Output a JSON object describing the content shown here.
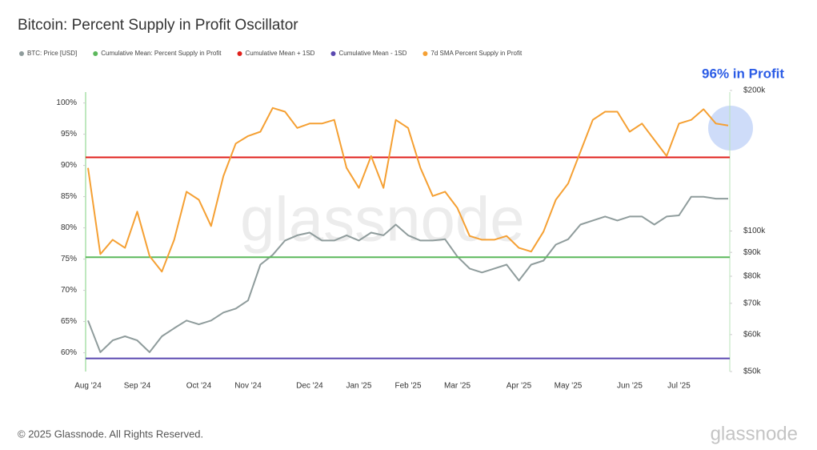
{
  "chart_data": {
    "type": "line",
    "title": "Bitcoin: Percent Supply in Profit Oscillator",
    "annotation": "96% in Profit",
    "copyright": "© 2025 Glassnode. All Rights Reserved.",
    "watermark": "glassnode",
    "categories": [
      "Aug '24",
      null,
      null,
      null,
      "Sep '24",
      null,
      null,
      null,
      null,
      "Oct '24",
      null,
      null,
      null,
      "Nov '24",
      null,
      null,
      null,
      null,
      "Dec '24",
      null,
      null,
      null,
      "Jan '25",
      null,
      null,
      null,
      "Feb '25",
      null,
      null,
      null,
      "Mar '25",
      null,
      null,
      null,
      null,
      "Apr '25",
      null,
      null,
      null,
      "May '25",
      null,
      null,
      null,
      null,
      "Jun '25",
      null,
      null,
      null,
      "Jul '25",
      null,
      null,
      null,
      null
    ],
    "series": [
      {
        "name": "BTC: Price [USD]",
        "color": "#8f9c9c",
        "axis": "y2",
        "values": [
          64300,
          55000,
          58300,
          59500,
          58300,
          55000,
          59500,
          61900,
          64300,
          63100,
          64300,
          66900,
          68200,
          71000,
          84700,
          88900,
          95400,
          97900,
          99200,
          95400,
          95400,
          97900,
          95400,
          99200,
          97900,
          103200,
          97900,
          95400,
          95400,
          96000,
          88200,
          83100,
          81500,
          83100,
          84700,
          78300,
          84700,
          86400,
          93500,
          96000,
          103200,
          105300,
          107400,
          105300,
          107400,
          107400,
          103200,
          107400,
          108000,
          118400,
          118400,
          117300,
          117300
        ]
      },
      {
        "name": "Cumulative Mean: Percent Supply in Profit",
        "color": "#5cb85c",
        "value": 75.3
      },
      {
        "name": "Cumulative Mean + 1SD",
        "color": "#e0201b",
        "value": 91.3
      },
      {
        "name": "Cumulative Mean - 1SD",
        "color": "#5a48b0",
        "value": 59.1
      },
      {
        "name": "7d SMA Percent Supply in Profit",
        "color": "#f5a033",
        "values": [
          89.6,
          75.8,
          78.1,
          76.8,
          82.6,
          75.5,
          73,
          78.1,
          85.8,
          84.5,
          80.3,
          88.3,
          93.5,
          94.7,
          95.4,
          99.2,
          98.6,
          96,
          96.7,
          96.7,
          97.3,
          89.6,
          86.4,
          91.5,
          86.4,
          97.3,
          96,
          89.6,
          85.1,
          85.8,
          83.2,
          78.7,
          78.1,
          78.1,
          78.7,
          76.8,
          76.2,
          79.4,
          84.5,
          87.1,
          92.2,
          97.3,
          98.6,
          98.6,
          95.4,
          96.7,
          94.1,
          91.5,
          96.7,
          97.3,
          99,
          96.7,
          96.4
        ]
      }
    ],
    "ylim": [
      57,
      102
    ],
    "yticks": [
      {
        "value": 60,
        "label": "60%"
      },
      {
        "value": 65,
        "label": "65%"
      },
      {
        "value": 70,
        "label": "70%"
      },
      {
        "value": 75,
        "label": "75%"
      },
      {
        "value": 80,
        "label": "80%"
      },
      {
        "value": 85,
        "label": "85%"
      },
      {
        "value": 90,
        "label": "90%"
      },
      {
        "value": 95,
        "label": "95%"
      },
      {
        "value": 100,
        "label": "100%"
      }
    ],
    "y2lim": [
      50000,
      200000
    ],
    "y2scale": "log",
    "y2ticks": [
      {
        "value": 50000,
        "label": "$50k"
      },
      {
        "value": 60000,
        "label": "$60k"
      },
      {
        "value": 70000,
        "label": "$70k"
      },
      {
        "value": 80000,
        "label": "$80k"
      },
      {
        "value": 90000,
        "label": "$90k"
      },
      {
        "value": 100000,
        "label": "$100k"
      },
      {
        "value": 200000,
        "label": "$200k"
      }
    ],
    "grid": false,
    "legend": "top"
  }
}
